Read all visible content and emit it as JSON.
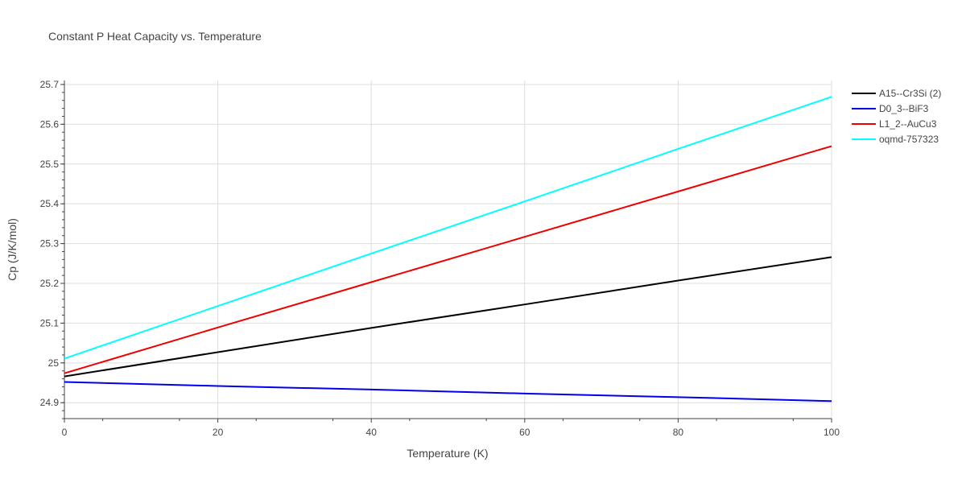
{
  "chart_data": {
    "type": "line",
    "title": "Constant P Heat Capacity vs. Temperature",
    "xlabel": "Temperature (K)",
    "ylabel": "Cp (J/K/mol)",
    "xlim": [
      0,
      100
    ],
    "ylim": [
      24.86,
      25.71
    ],
    "x_ticks": [
      0,
      20,
      40,
      60,
      80,
      100
    ],
    "x_tick_labels": [
      "0",
      "20",
      "40",
      "60",
      "80",
      "100"
    ],
    "y_ticks": [
      24.9,
      25,
      25.1,
      25.2,
      25.3,
      25.4,
      25.5,
      25.6,
      25.7
    ],
    "y_tick_labels": [
      "24.9",
      "25",
      "25.1",
      "25.2",
      "25.3",
      "25.4",
      "25.5",
      "25.6",
      "25.7"
    ],
    "grid": true,
    "legend_position": "top-right, outside plot",
    "series": [
      {
        "name": "A15--Cr3Si (2)",
        "color": "#000000",
        "x": [
          0,
          20,
          40,
          60,
          80,
          100
        ],
        "y": [
          24.966,
          25.027,
          25.088,
          25.147,
          25.207,
          25.266
        ]
      },
      {
        "name": "D0_3--BiF3",
        "color": "#0000ee",
        "x": [
          0,
          20,
          40,
          60,
          80,
          100
        ],
        "y": [
          24.952,
          24.942,
          24.933,
          24.923,
          24.914,
          24.904
        ]
      },
      {
        "name": "L1_2--AuCu3",
        "color": "#ee0000",
        "x": [
          0,
          20,
          40,
          60,
          80,
          100
        ],
        "y": [
          24.974,
          25.089,
          25.203,
          25.317,
          25.431,
          25.545
        ]
      },
      {
        "name": "oqmd-757323",
        "color": "#00ffff",
        "x": [
          0,
          20,
          40,
          60,
          80,
          100
        ],
        "y": [
          25.011,
          25.143,
          25.275,
          25.406,
          25.538,
          25.669
        ]
      }
    ]
  }
}
